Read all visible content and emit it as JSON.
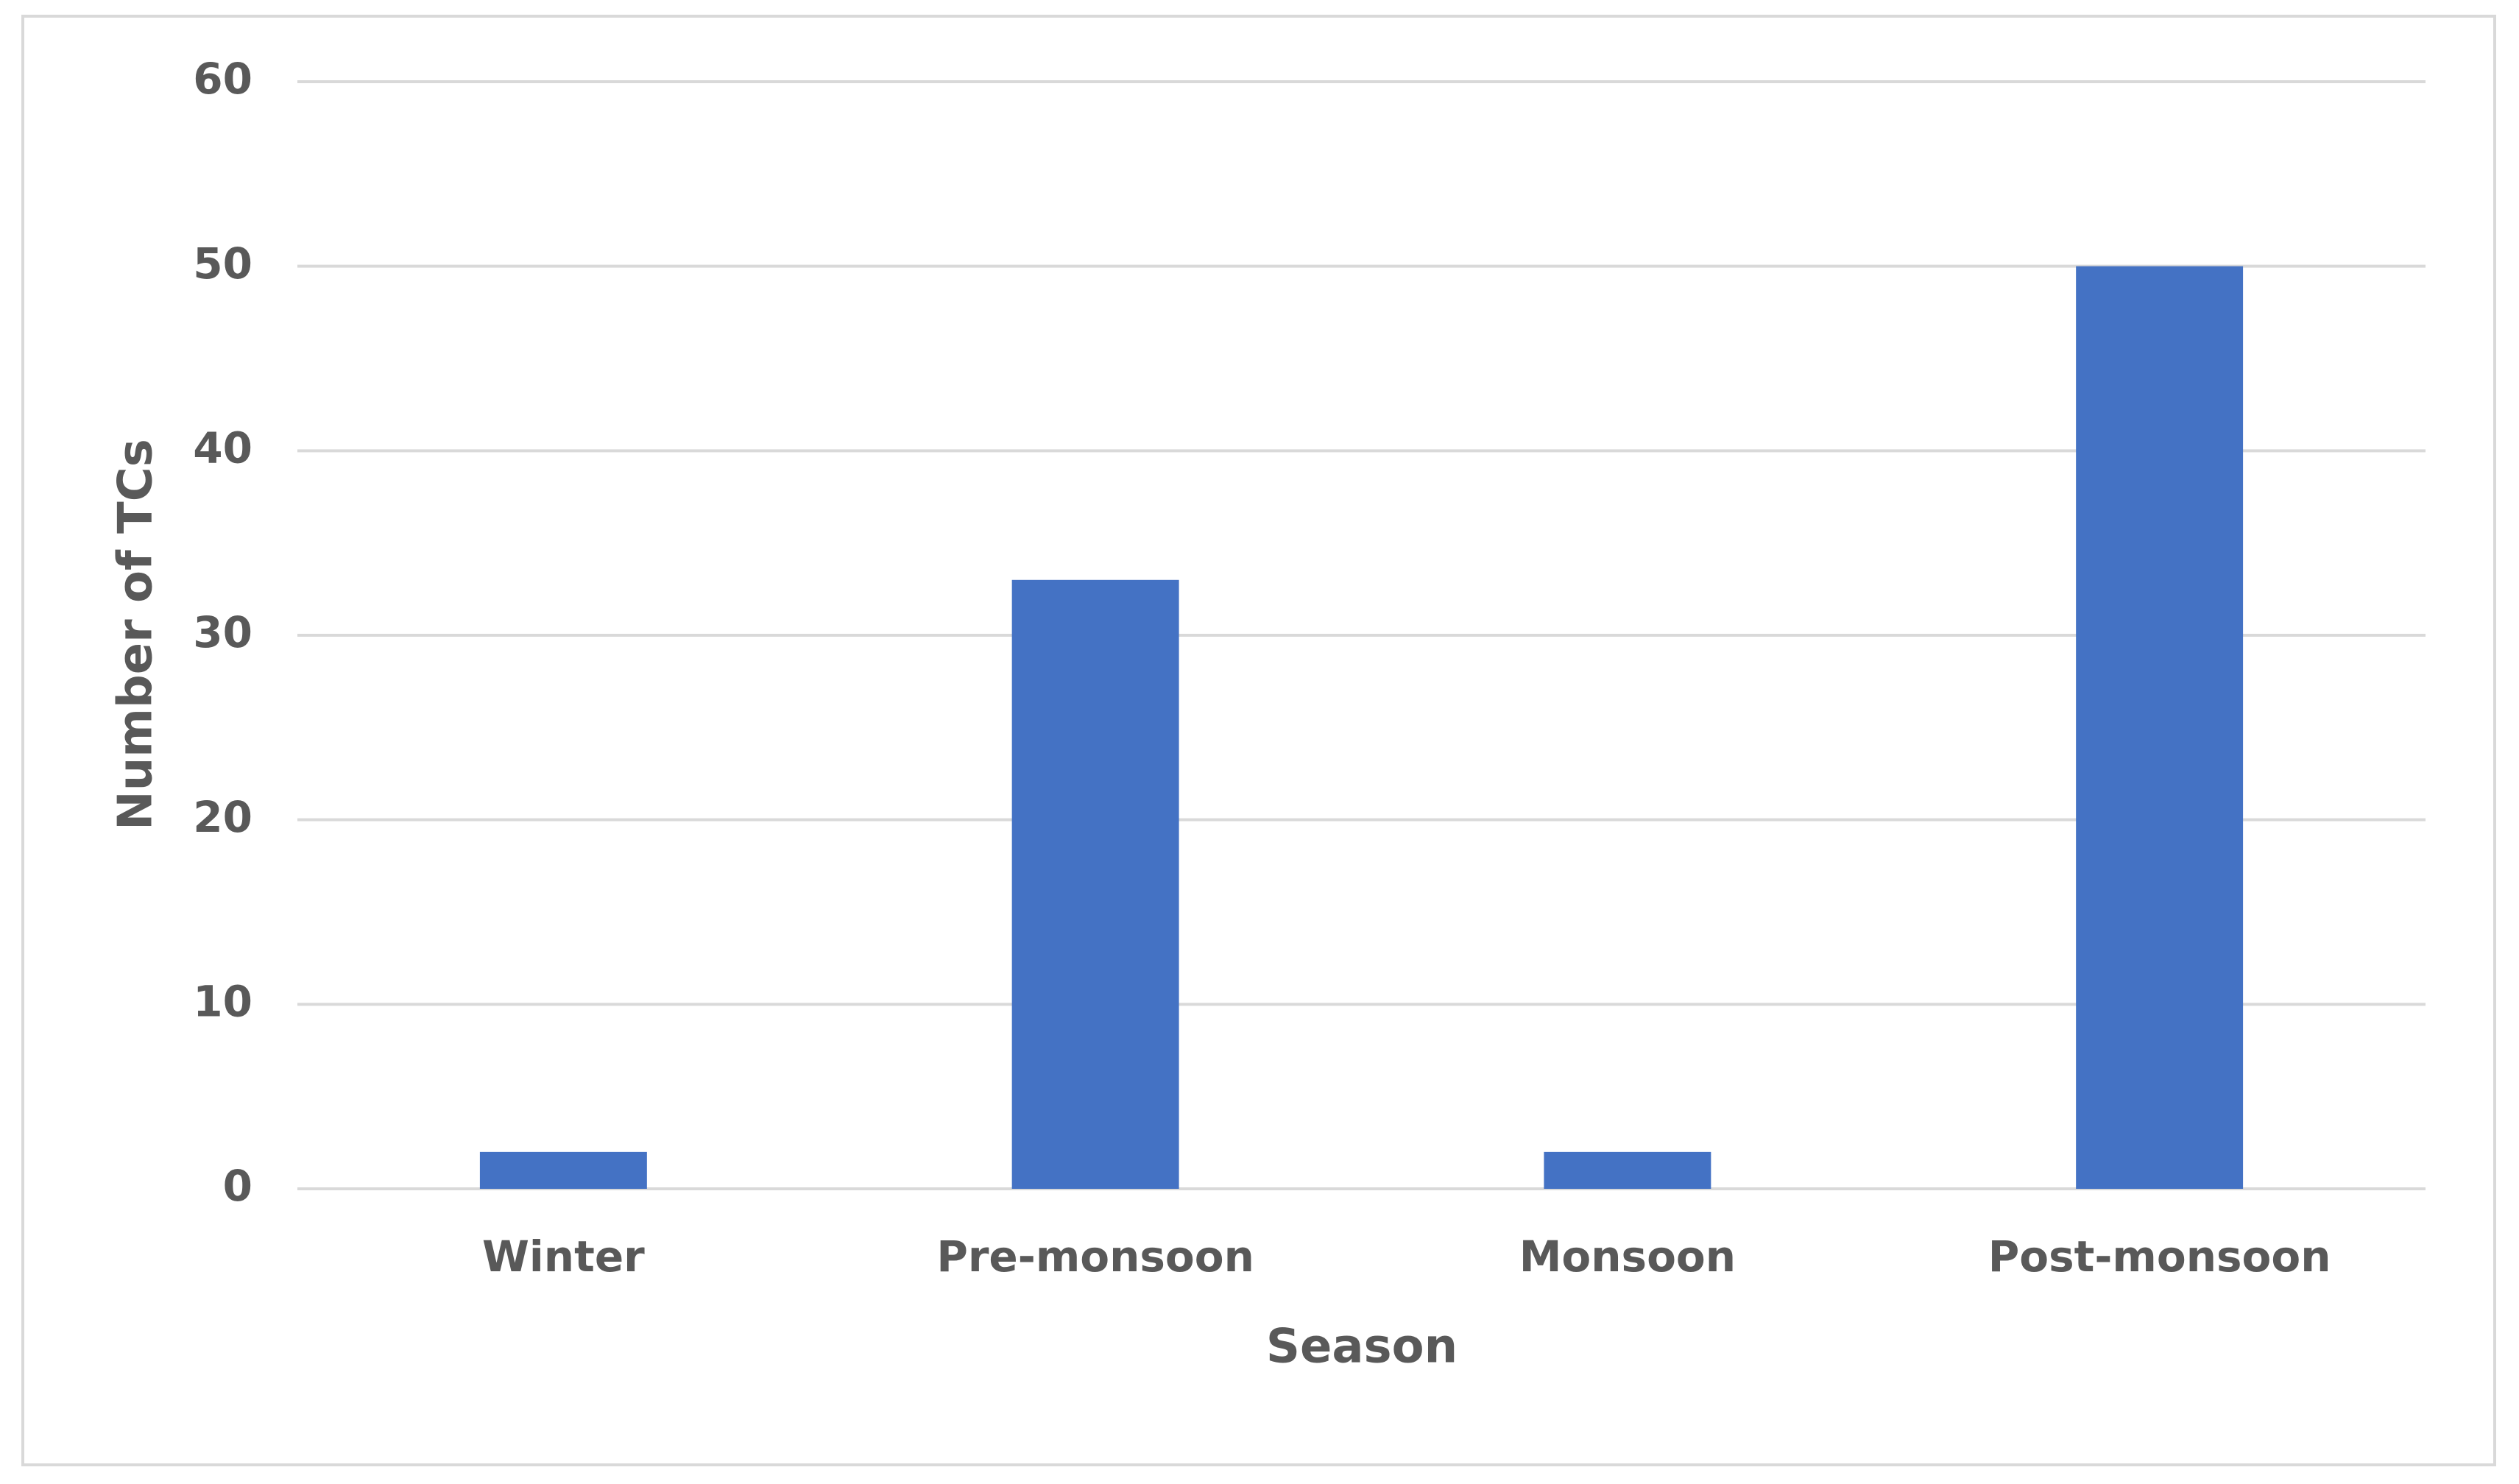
{
  "chart_data": {
    "type": "bar",
    "x_label": "Season",
    "y_label": "Number of TCs",
    "categories": [
      "Winter",
      "Pre-monsoon",
      "Monsoon",
      "Post-monsoon"
    ],
    "values": [
      2,
      33,
      2,
      50
    ],
    "color": "#4472c4",
    "ylim": [
      0,
      60
    ],
    "yticks": [
      0,
      10,
      20,
      30,
      40,
      50,
      60
    ],
    "grid": true
  }
}
